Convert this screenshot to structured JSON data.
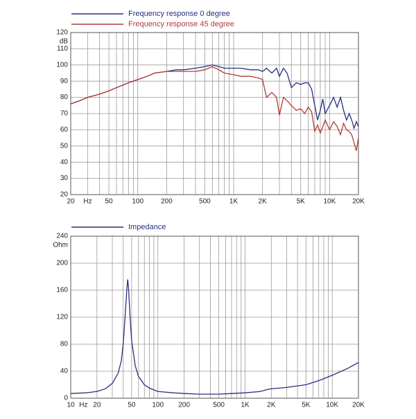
{
  "chart_data": [
    {
      "type": "line",
      "y_label": "dB",
      "log_x": true,
      "grid": true,
      "xlim": [
        20,
        20000
      ],
      "ylim": [
        20,
        120
      ],
      "xticks": [
        20,
        {
          "value": 30,
          "label": "Hz"
        },
        50,
        100,
        200,
        500,
        {
          "value": 1000,
          "label": "1K"
        },
        {
          "value": 2000,
          "label": "2K"
        },
        {
          "value": 5000,
          "label": "5K"
        },
        {
          "value": 10000,
          "label": "10K"
        },
        {
          "value": 20000,
          "label": "20K"
        }
      ],
      "xgrid": [
        20,
        30,
        40,
        50,
        60,
        70,
        80,
        90,
        100,
        200,
        300,
        400,
        500,
        600,
        700,
        800,
        900,
        1000,
        2000,
        3000,
        4000,
        5000,
        6000,
        7000,
        8000,
        9000,
        10000,
        20000
      ],
      "yticks": [
        20,
        30,
        40,
        50,
        60,
        70,
        80,
        90,
        100,
        110,
        120
      ],
      "x": [
        20,
        25,
        30,
        40,
        50,
        60,
        80,
        100,
        125,
        150,
        200,
        250,
        300,
        400,
        500,
        600,
        700,
        800,
        1000,
        1200,
        1500,
        1800,
        2000,
        2200,
        2500,
        2800,
        3000,
        3300,
        3600,
        4000,
        4500,
        5000,
        5500,
        6000,
        6500,
        7000,
        7500,
        8000,
        8500,
        9000,
        10000,
        11000,
        12000,
        13000,
        14000,
        15000,
        16000,
        17000,
        18000,
        19000,
        20000
      ],
      "series": [
        {
          "name": "Frequency response 0 degree",
          "color": "#27307c",
          "values": [
            76,
            78,
            80,
            82,
            84,
            86,
            89,
            91,
            93,
            95,
            96,
            97,
            97,
            98,
            99,
            100,
            99,
            98,
            98,
            98,
            97,
            97,
            96,
            98,
            95,
            98,
            93,
            98,
            95,
            86,
            89,
            88,
            89,
            89,
            85,
            75,
            66,
            72,
            79,
            70,
            75,
            80,
            74,
            80,
            72,
            66,
            70,
            66,
            61,
            65,
            62
          ]
        },
        {
          "name": "Frequency response 45 degree",
          "color": "#b23a3a",
          "values": [
            76,
            78,
            80,
            82,
            84,
            86,
            89,
            91,
            93,
            95,
            96,
            96,
            96,
            96,
            97,
            99,
            97,
            95,
            94,
            93,
            93,
            92,
            91,
            80,
            83,
            80,
            69,
            80,
            78,
            75,
            72,
            73,
            70,
            74,
            71,
            59,
            63,
            58,
            62,
            66,
            60,
            65,
            62,
            57,
            64,
            60,
            59,
            57,
            52,
            47,
            55
          ]
        }
      ]
    },
    {
      "type": "line",
      "y_label": "Ohm",
      "log_x": true,
      "grid": true,
      "xlim": [
        10,
        20000
      ],
      "ylim": [
        0,
        240
      ],
      "xticks": [
        10,
        {
          "value": 14,
          "label": "Hz"
        },
        20,
        50,
        100,
        200,
        500,
        {
          "value": 1000,
          "label": "1K"
        },
        {
          "value": 2000,
          "label": "2K"
        },
        {
          "value": 5000,
          "label": "5K"
        },
        {
          "value": 10000,
          "label": "10K"
        },
        {
          "value": 20000,
          "label": "20K"
        }
      ],
      "xgrid": [
        10,
        20,
        30,
        40,
        50,
        60,
        70,
        80,
        90,
        100,
        200,
        300,
        400,
        500,
        600,
        700,
        800,
        900,
        1000,
        2000,
        3000,
        4000,
        5000,
        6000,
        7000,
        8000,
        9000,
        10000,
        20000
      ],
      "yticks": [
        0,
        40,
        80,
        120,
        160,
        200,
        240
      ],
      "x": [
        10,
        15,
        20,
        25,
        30,
        35,
        38,
        40,
        42,
        44,
        45,
        46,
        48,
        50,
        55,
        60,
        70,
        80,
        100,
        150,
        200,
        300,
        500,
        700,
        1000,
        1500,
        1800,
        2000,
        3000,
        5000,
        7000,
        10000,
        15000,
        20000
      ],
      "series": [
        {
          "name": "Impedance",
          "color": "#27307c",
          "values": [
            7,
            8,
            10,
            14,
            22,
            37,
            55,
            80,
            120,
            160,
            176,
            165,
            120,
            85,
            48,
            32,
            20,
            15,
            10,
            8,
            7,
            6,
            6,
            7,
            8,
            10,
            13,
            14,
            16,
            20,
            26,
            34,
            44,
            53
          ]
        }
      ]
    }
  ]
}
